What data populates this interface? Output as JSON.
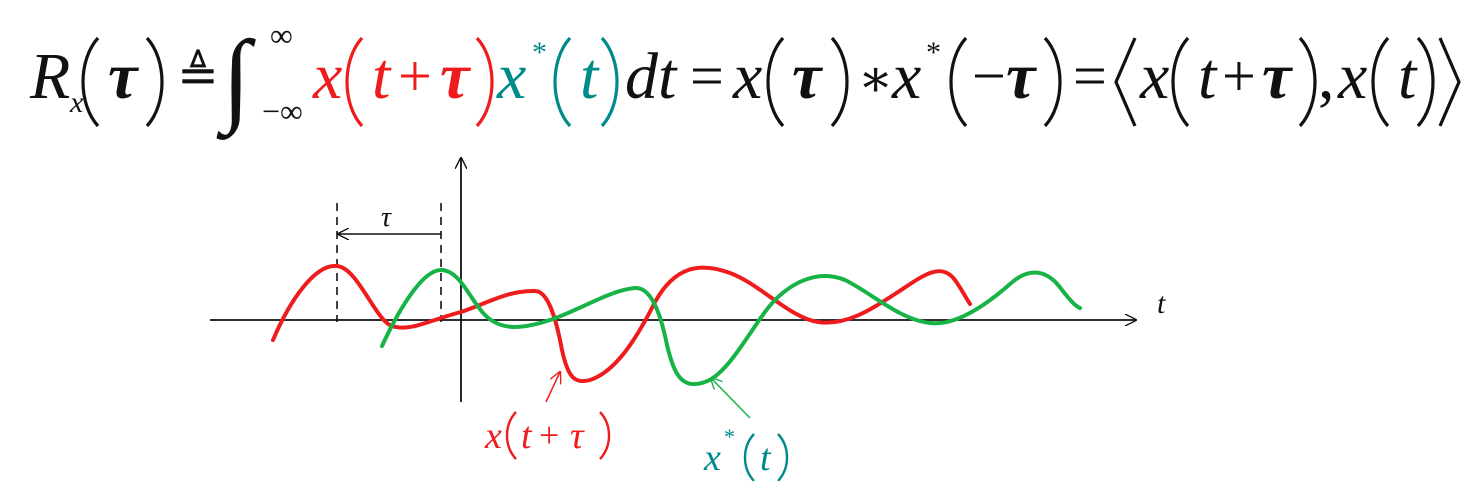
{
  "colors": {
    "black": "#111111",
    "red": "#ee1c1c",
    "teal": "#008b8b",
    "green": "#18b347"
  },
  "formula": {
    "R": "R",
    "sub_x": "x",
    "tau": "τ",
    "def_eq": "≜",
    "integral": "∫",
    "upper": "∞",
    "lower": "−∞",
    "x": "x",
    "t": "t",
    "plus": "+",
    "star": "*",
    "dt": "dt",
    "eq": "=",
    "conv": "∗",
    "minus": "−",
    "comma": ","
  },
  "diagram": {
    "tau_label": "τ",
    "t_axis_label": "t",
    "red_label": {
      "x": "x",
      "t": "t",
      "plus": "+",
      "tau": "τ"
    },
    "green_label": {
      "x": "x",
      "star": "*",
      "t": "t"
    }
  }
}
